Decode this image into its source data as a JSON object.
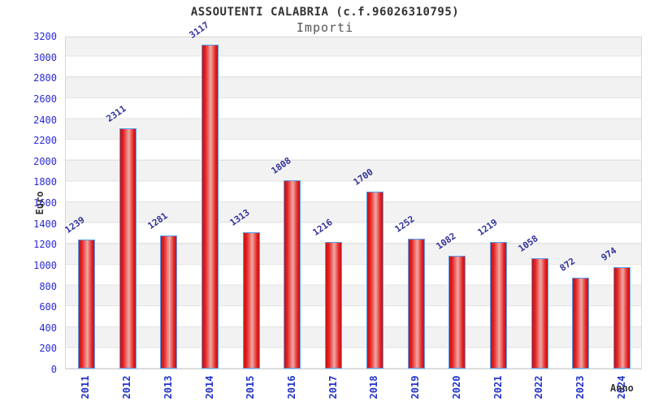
{
  "header": {
    "title": "ASSOUTENTI CALABRIA (c.f.96026310795)",
    "subtitle": "Importi"
  },
  "chart_data": {
    "type": "bar",
    "title": "ASSOUTENTI CALABRIA (c.f.96026310795)",
    "subtitle": "Importi",
    "xlabel": "Anno",
    "ylabel": "Euro",
    "categories": [
      "2011",
      "2012",
      "2013",
      "2014",
      "2015",
      "2016",
      "2017",
      "2018",
      "2019",
      "2020",
      "2021",
      "2022",
      "2023",
      "2024"
    ],
    "values": [
      1239,
      2311,
      1281,
      3117,
      1313,
      1808,
      1216,
      1700,
      1252,
      1082,
      1219,
      1058,
      872,
      974
    ],
    "ylim": [
      0,
      3200
    ],
    "ytick_step": 200,
    "grid": true,
    "legend": "none",
    "band_colors": [
      "#ffffff",
      "#f2f2f2"
    ],
    "gridline_color": "#e3e3e3",
    "bar_fill_edge": "#c41212",
    "bar_fill_center": "#efa9a4",
    "bar_border_color": "#55a0f0",
    "value_label_color": "#333399",
    "tick_label_color": "#2a2ad6",
    "axis_title_color": "#333333"
  }
}
